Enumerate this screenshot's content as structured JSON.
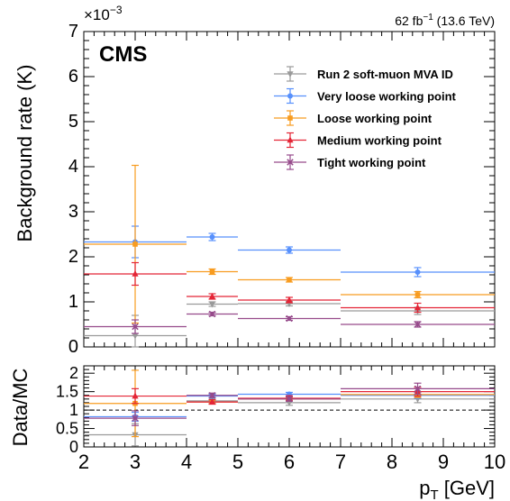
{
  "header": {
    "experiment": "CMS",
    "exponent_base": "×10",
    "exponent_power": "−3",
    "lumi_value": "62 fb",
    "lumi_power": "−1",
    "lumi_energy": " (13.6 TeV)"
  },
  "chart_data": [
    {
      "type": "scatter",
      "panel": "main",
      "ylabel": "Background rate (K)",
      "xlim": [
        2,
        10
      ],
      "ylim": [
        0,
        7
      ],
      "y_scale_factor": "×10^-3",
      "xticks": [
        "2",
        "3",
        "4",
        "5",
        "6",
        "7",
        "8",
        "9",
        "10"
      ],
      "yticks": [
        "0",
        "1",
        "2",
        "3",
        "4",
        "5",
        "6",
        "7"
      ],
      "bin_edges": [
        2,
        4,
        5,
        7,
        10
      ],
      "bin_centers": [
        3,
        4.5,
        6,
        8.5
      ],
      "legend_position": "top-right",
      "series": [
        {
          "name": "Run 2 soft-muon MVA ID",
          "color": "#9a9a9a",
          "marker": "triangle-down",
          "values": [
            0.25,
            0.95,
            0.96,
            0.8
          ],
          "errors": [
            0.45,
            0.05,
            0.05,
            0.08
          ]
        },
        {
          "name": "Very loose working point",
          "color": "#5790fc",
          "marker": "circle",
          "values": [
            2.33,
            2.44,
            2.15,
            1.66
          ],
          "errors": [
            0.35,
            0.08,
            0.07,
            0.1
          ]
        },
        {
          "name": "Loose working point",
          "color": "#f89c20",
          "marker": "square",
          "values": [
            2.28,
            1.67,
            1.49,
            1.16
          ],
          "errors": [
            1.75,
            0.06,
            0.05,
            0.07
          ]
        },
        {
          "name": "Medium working point",
          "color": "#e42536",
          "marker": "triangle-up",
          "values": [
            1.62,
            1.12,
            1.04,
            0.87
          ],
          "errors": [
            0.25,
            0.06,
            0.06,
            0.1
          ]
        },
        {
          "name": "Tight working point",
          "color": "#964a8b",
          "marker": "cross",
          "values": [
            0.45,
            0.73,
            0.63,
            0.5
          ],
          "errors": [
            0.15,
            0.04,
            0.04,
            0.06
          ]
        }
      ]
    },
    {
      "type": "scatter",
      "panel": "ratio",
      "xlabel": "p_T [GeV]",
      "xlabel_main": "p",
      "xlabel_sub": "T",
      "xlabel_unit": " [GeV]",
      "ylabel": "Data/MC",
      "xlim": [
        2,
        10
      ],
      "ylim": [
        0,
        2.2
      ],
      "xticks": [
        "2",
        "3",
        "4",
        "5",
        "6",
        "7",
        "8",
        "9",
        "10"
      ],
      "yticks": [
        "0",
        "0.5",
        "1",
        "1.5",
        "2"
      ],
      "reference_line": 1,
      "bin_edges": [
        2,
        4,
        5,
        7,
        10
      ],
      "bin_centers": [
        3,
        4.5,
        6,
        8.5
      ],
      "series": [
        {
          "name": "Run 2 soft-muon MVA ID",
          "color": "#9a9a9a",
          "marker": "triangle-down",
          "values": [
            0.33,
            1.25,
            1.2,
            1.3
          ],
          "errors": [
            0.3,
            0.07,
            0.07,
            0.1
          ]
        },
        {
          "name": "Very loose working point",
          "color": "#5790fc",
          "marker": "circle",
          "values": [
            0.82,
            1.38,
            1.43,
            1.4
          ],
          "errors": [
            0.12,
            0.05,
            0.05,
            0.08
          ]
        },
        {
          "name": "Loose working point",
          "color": "#f89c20",
          "marker": "square",
          "values": [
            1.18,
            1.22,
            1.3,
            1.42
          ],
          "errors": [
            0.9,
            0.05,
            0.05,
            0.08
          ]
        },
        {
          "name": "Medium working point",
          "color": "#e42536",
          "marker": "triangle-up",
          "values": [
            1.38,
            1.22,
            1.32,
            1.5
          ],
          "errors": [
            0.2,
            0.06,
            0.07,
            0.12
          ]
        },
        {
          "name": "Tight working point",
          "color": "#964a8b",
          "marker": "cross",
          "values": [
            0.78,
            1.4,
            1.3,
            1.58
          ],
          "errors": [
            0.2,
            0.06,
            0.06,
            0.15
          ]
        }
      ]
    }
  ]
}
